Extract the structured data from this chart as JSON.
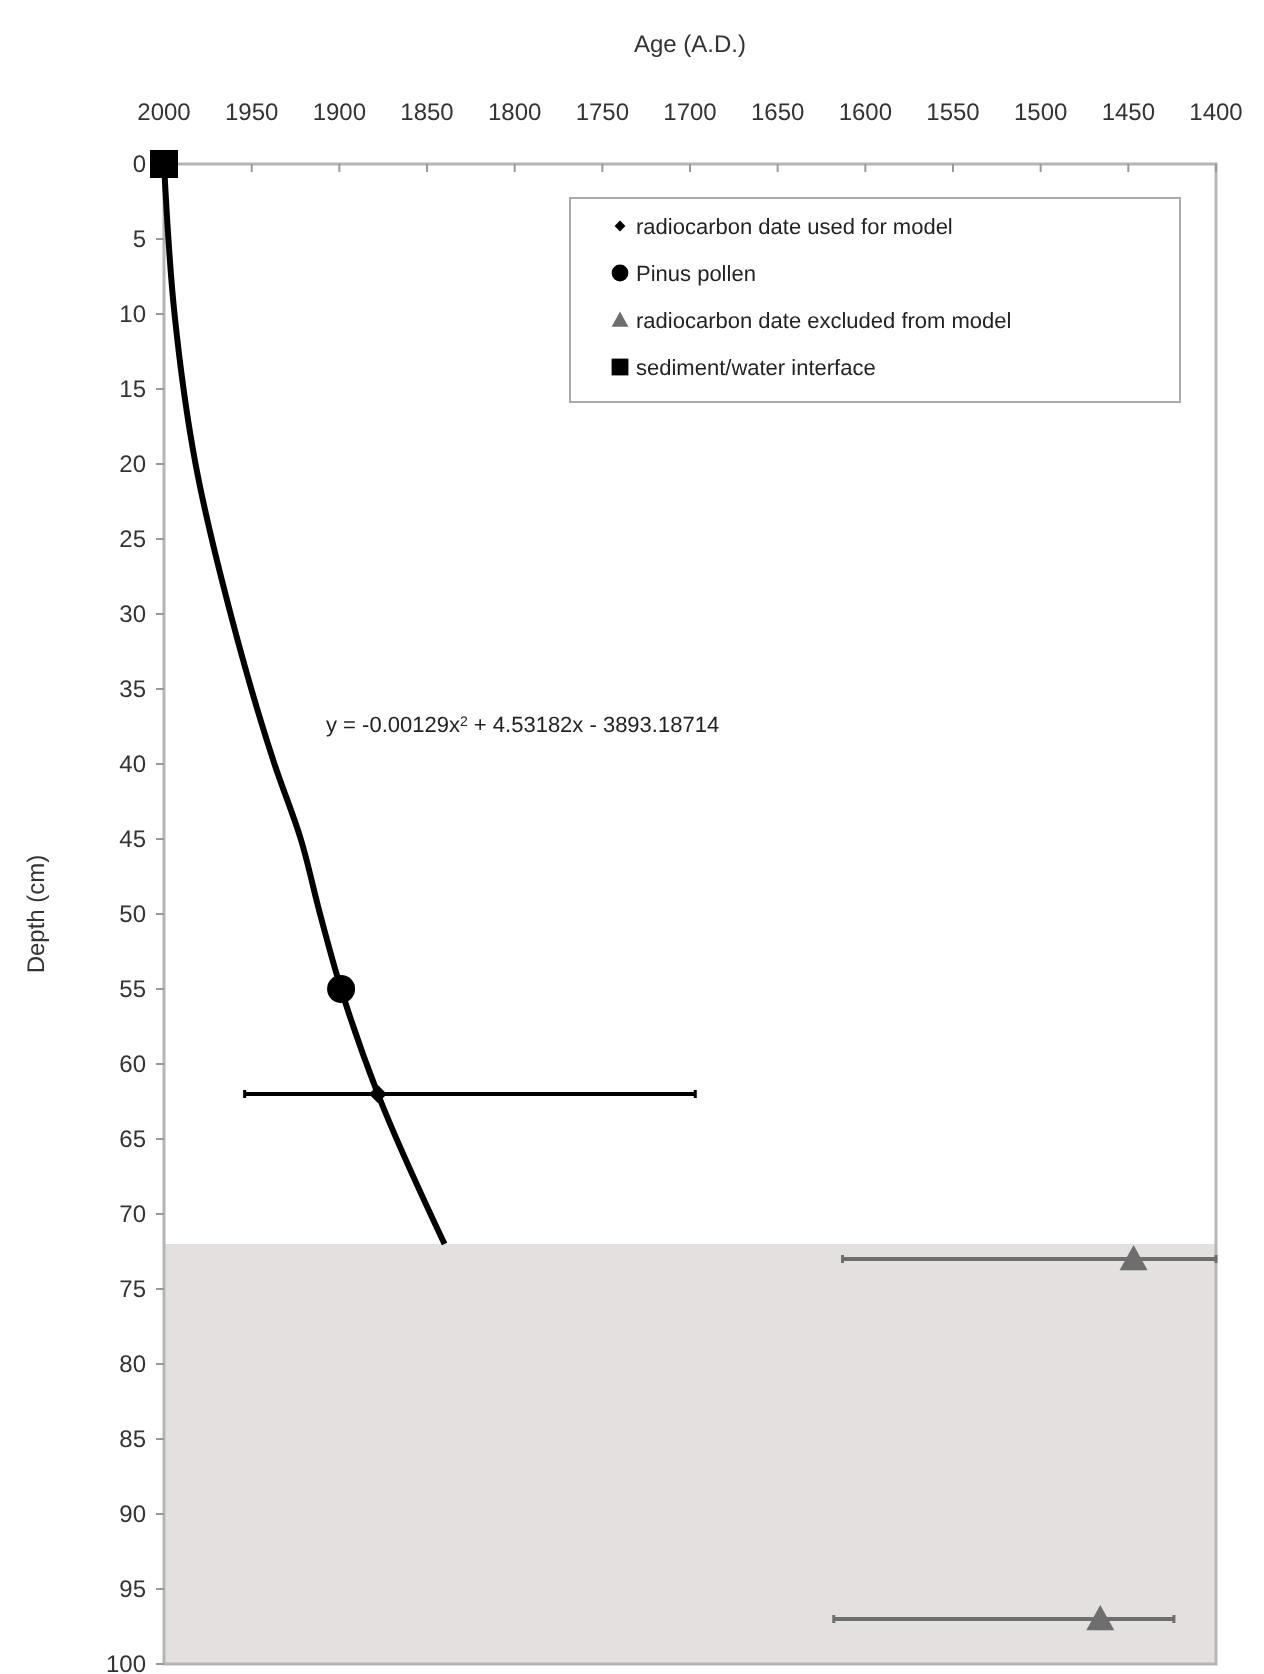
{
  "chart_data": {
    "type": "scatter",
    "xlabel": "Age (A.D.)",
    "ylabel": "Depth (cm)",
    "xlim": [
      2000,
      1400
    ],
    "xticks": [
      2000,
      1950,
      1900,
      1850,
      1800,
      1750,
      1700,
      1650,
      1600,
      1550,
      1500,
      1450,
      1400
    ],
    "ylim": [
      100,
      0
    ],
    "yticks": [
      0,
      5,
      10,
      15,
      20,
      25,
      30,
      35,
      40,
      45,
      50,
      55,
      60,
      65,
      70,
      75,
      80,
      85,
      90,
      95,
      100
    ],
    "grid": false,
    "legend": "top right",
    "bands": [
      {
        "axis": "y",
        "from": 72,
        "to": 100,
        "color": "#e3e0df"
      }
    ],
    "annotations": [
      "y = -0.00129x$^{2}$ + 4.53182x - 3893.18714"
    ],
    "series": [
      {
        "type": "line",
        "color": "#000000",
        "marker": "none",
        "x": [
          2000,
          1994,
          1982,
          1962,
          1937,
          1922,
          1911,
          1899,
          1878,
          1840
        ],
        "values": [
          0,
          10,
          20,
          30,
          40,
          45,
          50,
          55,
          62,
          72
        ]
      },
      {
        "name": "radiocarbon date used for model",
        "color": "#000000",
        "marker": "diamond",
        "x": [
          1878
        ],
        "values": [
          62
        ],
        "xerrors": [
          [
            1697,
            1954
          ]
        ]
      },
      {
        "name": "Pinus pollen",
        "color": "#000000",
        "marker": "circle",
        "x": [
          1899
        ],
        "values": [
          55
        ]
      },
      {
        "name": "radiocarbon date excluded from model",
        "color": "#6e6e6e",
        "marker": "triangle",
        "x": [
          1447,
          1466
        ],
        "values": [
          73,
          97
        ],
        "xerrors": [
          [
            1400,
            1613
          ],
          [
            1424,
            1618
          ]
        ]
      },
      {
        "name": "sediment/water interface",
        "color": "#000000",
        "marker": "square",
        "x": [
          2000
        ],
        "values": [
          0
        ]
      }
    ]
  }
}
